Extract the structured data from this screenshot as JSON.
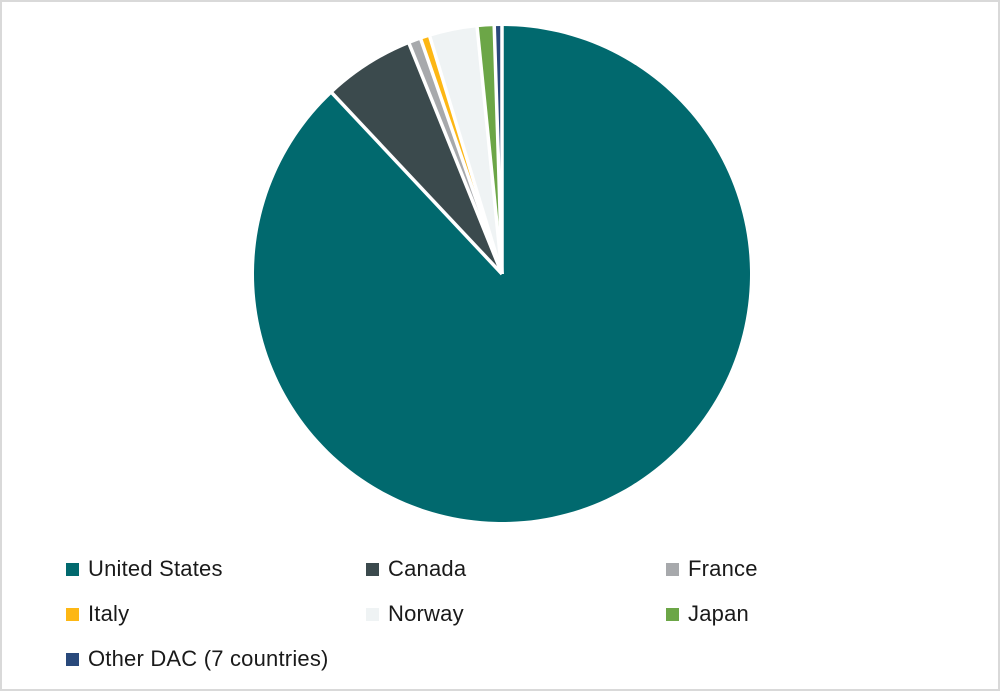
{
  "frame": {
    "background": "#ffffff",
    "border_color": "#d9d9d9"
  },
  "text_color": "#1a1a1a",
  "chart_data": {
    "type": "pie",
    "title": "",
    "start_angle_deg": -90,
    "direction": "clockwise",
    "slice_border_color": "#ffffff",
    "legend_position": "bottom",
    "legend_columns": 3,
    "series": [
      {
        "label": "United States",
        "value": 88.0,
        "color": "#01696e"
      },
      {
        "label": "Canada",
        "value": 5.9,
        "color": "#3b4a4d"
      },
      {
        "label": "France",
        "value": 0.8,
        "color": "#a7a9ac"
      },
      {
        "label": "Italy",
        "value": 0.6,
        "color": "#fdb714"
      },
      {
        "label": "Norway",
        "value": 3.1,
        "color": "#eff3f4"
      },
      {
        "label": "Japan",
        "value": 1.1,
        "color": "#6ca647"
      },
      {
        "label": "Other DAC (7 countries)",
        "value": 0.5,
        "color": "#29497b"
      }
    ]
  }
}
